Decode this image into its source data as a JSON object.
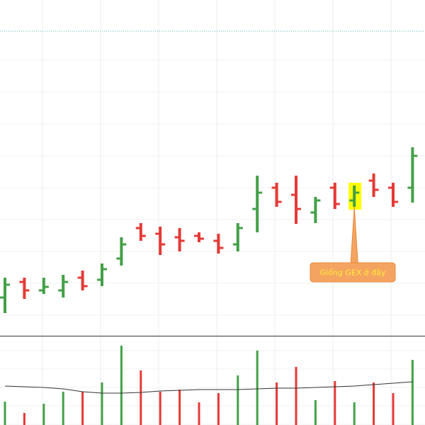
{
  "chart_data": {
    "type": "ohlc",
    "open": [
      54,
      76,
      64,
      64,
      82,
      79,
      109,
      152,
      144,
      139,
      141,
      134,
      129,
      179,
      209,
      199,
      174,
      209,
      191,
      219,
      209,
      209
    ],
    "high": [
      82,
      82,
      82,
      86,
      92,
      102,
      139,
      159,
      154,
      152,
      146,
      144,
      159,
      226,
      216,
      226,
      196,
      216,
      212,
      229,
      216,
      266
    ],
    "low": [
      32,
      52,
      59,
      54,
      64,
      70,
      99,
      134,
      114,
      119,
      132,
      116,
      119,
      146,
      182,
      158,
      159,
      179,
      182,
      196,
      182,
      188
    ],
    "close": [
      72,
      64,
      69,
      76,
      70,
      94,
      129,
      141,
      129,
      134,
      137,
      124,
      152,
      202,
      189,
      179,
      191,
      186,
      202,
      206,
      189,
      254
    ],
    "volume": [
      33,
      17,
      30,
      47,
      47,
      60,
      112,
      77,
      47,
      50,
      32,
      45,
      70,
      105,
      60,
      82,
      35,
      62,
      32,
      60,
      45,
      92
    ],
    "volume_ma": [
      55,
      54,
      53,
      51,
      47,
      45,
      45,
      46,
      48,
      49,
      50,
      50,
      50,
      51,
      52,
      52,
      53,
      54,
      55,
      57,
      59,
      61
    ],
    "up_color": "#43a047",
    "down_color": "#e53935",
    "ma_color": "#333333",
    "ylim": [
      0,
      474
    ],
    "volume_lim": [
      0,
      125
    ],
    "price_line": 430,
    "price_line_color": "#4db6ac",
    "annotation": {
      "text": "Giống GEX ở đây",
      "bar": 18
    }
  }
}
